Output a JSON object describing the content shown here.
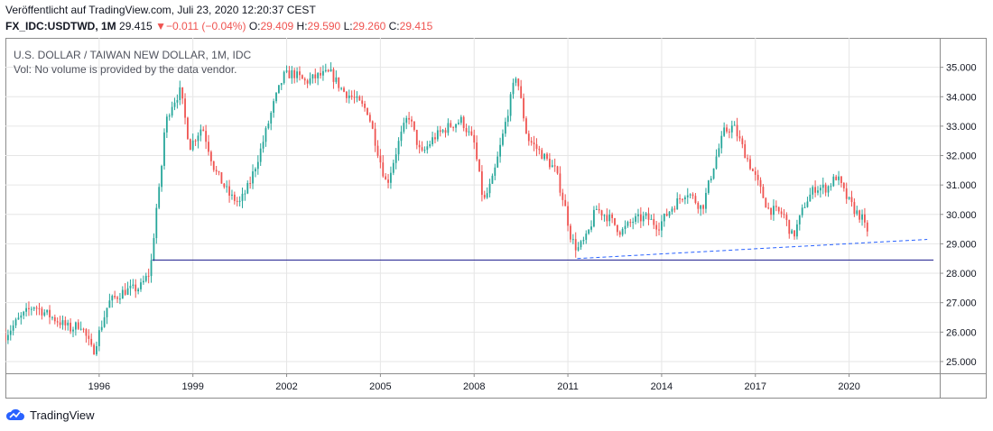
{
  "header": {
    "published": "Veröffentlicht auf TradingView.com, Juli 23, 2020 12:20:37 CEST",
    "symbol": "FX_IDC:USDTWD, 1M",
    "last": "29.415",
    "change_arrow": "▼",
    "change": "−0.011 (−0.04%)",
    "o_label": "O:",
    "o_value": "29.409",
    "h_label": "H:",
    "h_value": "29.590",
    "l_label": "L:",
    "l_value": "29.260",
    "c_label": "C:",
    "c_value": "29.415"
  },
  "legend": {
    "title": "U.S. DOLLAR / TAIWAN NEW DOLLAR, 1M, IDC",
    "volume_note": "Vol: No volume is provided by the data vendor."
  },
  "brand": {
    "name": "TradingView",
    "icon": "tradingview-cloud-icon"
  },
  "colors": {
    "up": "#26a69a",
    "down": "#ef5350",
    "support_line": "#1a1a8c",
    "trend_line": "#2962ff",
    "grid": "#e6e6e6"
  },
  "chart_data": {
    "type": "candlestick",
    "timeframe": "1M",
    "y_axis_side": "right",
    "ylim": [
      24.6,
      36.0
    ],
    "yticks": [
      25.0,
      26.0,
      27.0,
      28.0,
      29.0,
      30.0,
      31.0,
      32.0,
      33.0,
      34.0,
      35.0
    ],
    "ytick_labels": [
      "25.000",
      "26.000",
      "27.000",
      "28.000",
      "29.000",
      "30.000",
      "31.000",
      "32.000",
      "33.000",
      "34.000",
      "35.000"
    ],
    "xlim": [
      1993.0,
      2022.9
    ],
    "xticks": [
      1996,
      1999,
      2002,
      2005,
      2008,
      2011,
      2014,
      2017,
      2020
    ],
    "xtick_labels": [
      "1996",
      "1999",
      "2002",
      "2005",
      "2008",
      "2011",
      "2014",
      "2017",
      "2020"
    ],
    "grid": true,
    "close_path": [
      [
        1993.0,
        25.9
      ],
      [
        1993.4,
        26.4
      ],
      [
        1993.9,
        26.9
      ],
      [
        1994.5,
        26.5
      ],
      [
        1995.1,
        26.1
      ],
      [
        1995.4,
        26.3
      ],
      [
        1995.8,
        25.3
      ],
      [
        1996.3,
        27.0
      ],
      [
        1996.8,
        27.4
      ],
      [
        1997.3,
        27.5
      ],
      [
        1997.6,
        28.0
      ],
      [
        1997.7,
        28.6
      ],
      [
        1997.8,
        30.0
      ],
      [
        1997.95,
        31.0
      ],
      [
        1998.1,
        33.0
      ],
      [
        1998.3,
        33.7
      ],
      [
        1998.6,
        34.2
      ],
      [
        1998.9,
        32.3
      ],
      [
        1999.3,
        33.0
      ],
      [
        1999.7,
        31.5
      ],
      [
        2000.2,
        30.6
      ],
      [
        2000.5,
        30.4
      ],
      [
        2000.8,
        31.0
      ],
      [
        2001.2,
        32.3
      ],
      [
        2001.6,
        33.8
      ],
      [
        2001.9,
        34.7
      ],
      [
        2002.2,
        34.8
      ],
      [
        2002.6,
        34.5
      ],
      [
        2003.0,
        34.7
      ],
      [
        2003.4,
        34.8
      ],
      [
        2003.8,
        34.2
      ],
      [
        2004.2,
        33.9
      ],
      [
        2004.6,
        33.5
      ],
      [
        2005.0,
        31.8
      ],
      [
        2005.2,
        31.0
      ],
      [
        2005.6,
        32.5
      ],
      [
        2005.9,
        33.4
      ],
      [
        2006.3,
        32.0
      ],
      [
        2006.7,
        32.6
      ],
      [
        2007.2,
        33.0
      ],
      [
        2007.6,
        33.2
      ],
      [
        2008.0,
        32.4
      ],
      [
        2008.3,
        30.4
      ],
      [
        2008.6,
        31.2
      ],
      [
        2008.9,
        32.6
      ],
      [
        2009.1,
        33.6
      ],
      [
        2009.35,
        34.8
      ],
      [
        2009.7,
        32.6
      ],
      [
        2010.2,
        32.0
      ],
      [
        2010.6,
        31.5
      ],
      [
        2010.9,
        30.3
      ],
      [
        2011.1,
        29.2
      ],
      [
        2011.3,
        28.8
      ],
      [
        2011.6,
        29.2
      ],
      [
        2011.9,
        30.2
      ],
      [
        2012.3,
        29.9
      ],
      [
        2012.7,
        29.4
      ],
      [
        2013.1,
        29.8
      ],
      [
        2013.5,
        29.9
      ],
      [
        2013.9,
        29.6
      ],
      [
        2014.3,
        30.2
      ],
      [
        2014.8,
        30.8
      ],
      [
        2015.3,
        30.2
      ],
      [
        2015.7,
        31.8
      ],
      [
        2016.0,
        32.8
      ],
      [
        2016.3,
        33.0
      ],
      [
        2016.7,
        32.0
      ],
      [
        2017.1,
        31.0
      ],
      [
        2017.4,
        30.2
      ],
      [
        2017.9,
        30.0
      ],
      [
        2018.2,
        29.2
      ],
      [
        2018.6,
        30.4
      ],
      [
        2018.9,
        30.9
      ],
      [
        2019.3,
        30.9
      ],
      [
        2019.6,
        31.3
      ],
      [
        2019.9,
        30.6
      ],
      [
        2020.2,
        30.1
      ],
      [
        2020.4,
        29.9
      ],
      [
        2020.55,
        29.42
      ]
    ],
    "support_line": {
      "level": 28.45,
      "x_start": 1997.7,
      "x_end": 2022.7
    },
    "trend_line": {
      "start": [
        2011.3,
        28.5
      ],
      "end": [
        2022.5,
        29.15
      ],
      "style": "dashed"
    }
  }
}
